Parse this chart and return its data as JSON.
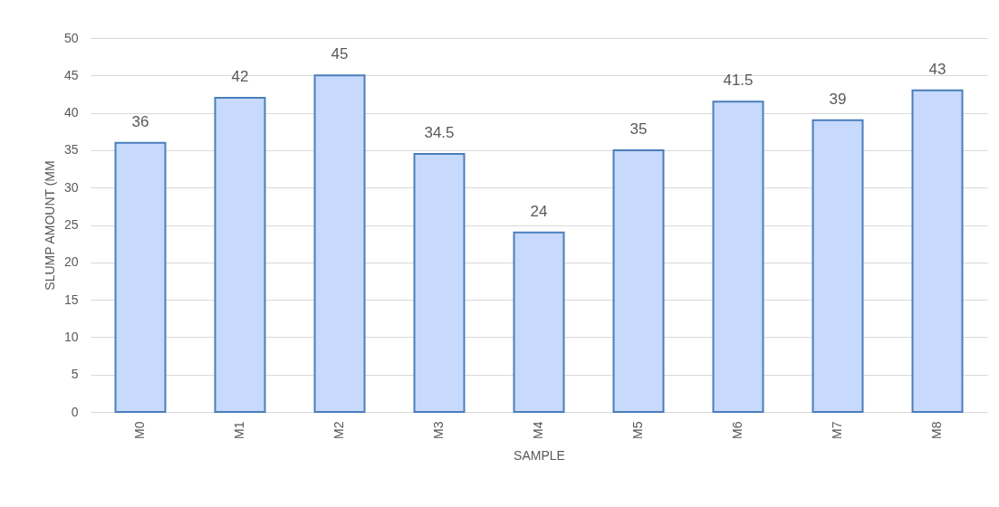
{
  "chart_data": {
    "type": "bar",
    "xlabel": "SAMPLE",
    "ylabel": "SLUMP AMOUNT   (MM",
    "categories": [
      "M0",
      "M1",
      "M2",
      "M3",
      "M4",
      "M5",
      "M6",
      "M7",
      "M8"
    ],
    "values": [
      36,
      42,
      45,
      34.5,
      24,
      35,
      41.5,
      39,
      43
    ],
    "color": "#c7d9fc",
    "ylim": [
      0,
      50
    ],
    "yticks": [
      0,
      5,
      10,
      15,
      20,
      25,
      30,
      35,
      40,
      45,
      50
    ],
    "grid": "y",
    "data_labels": true
  }
}
